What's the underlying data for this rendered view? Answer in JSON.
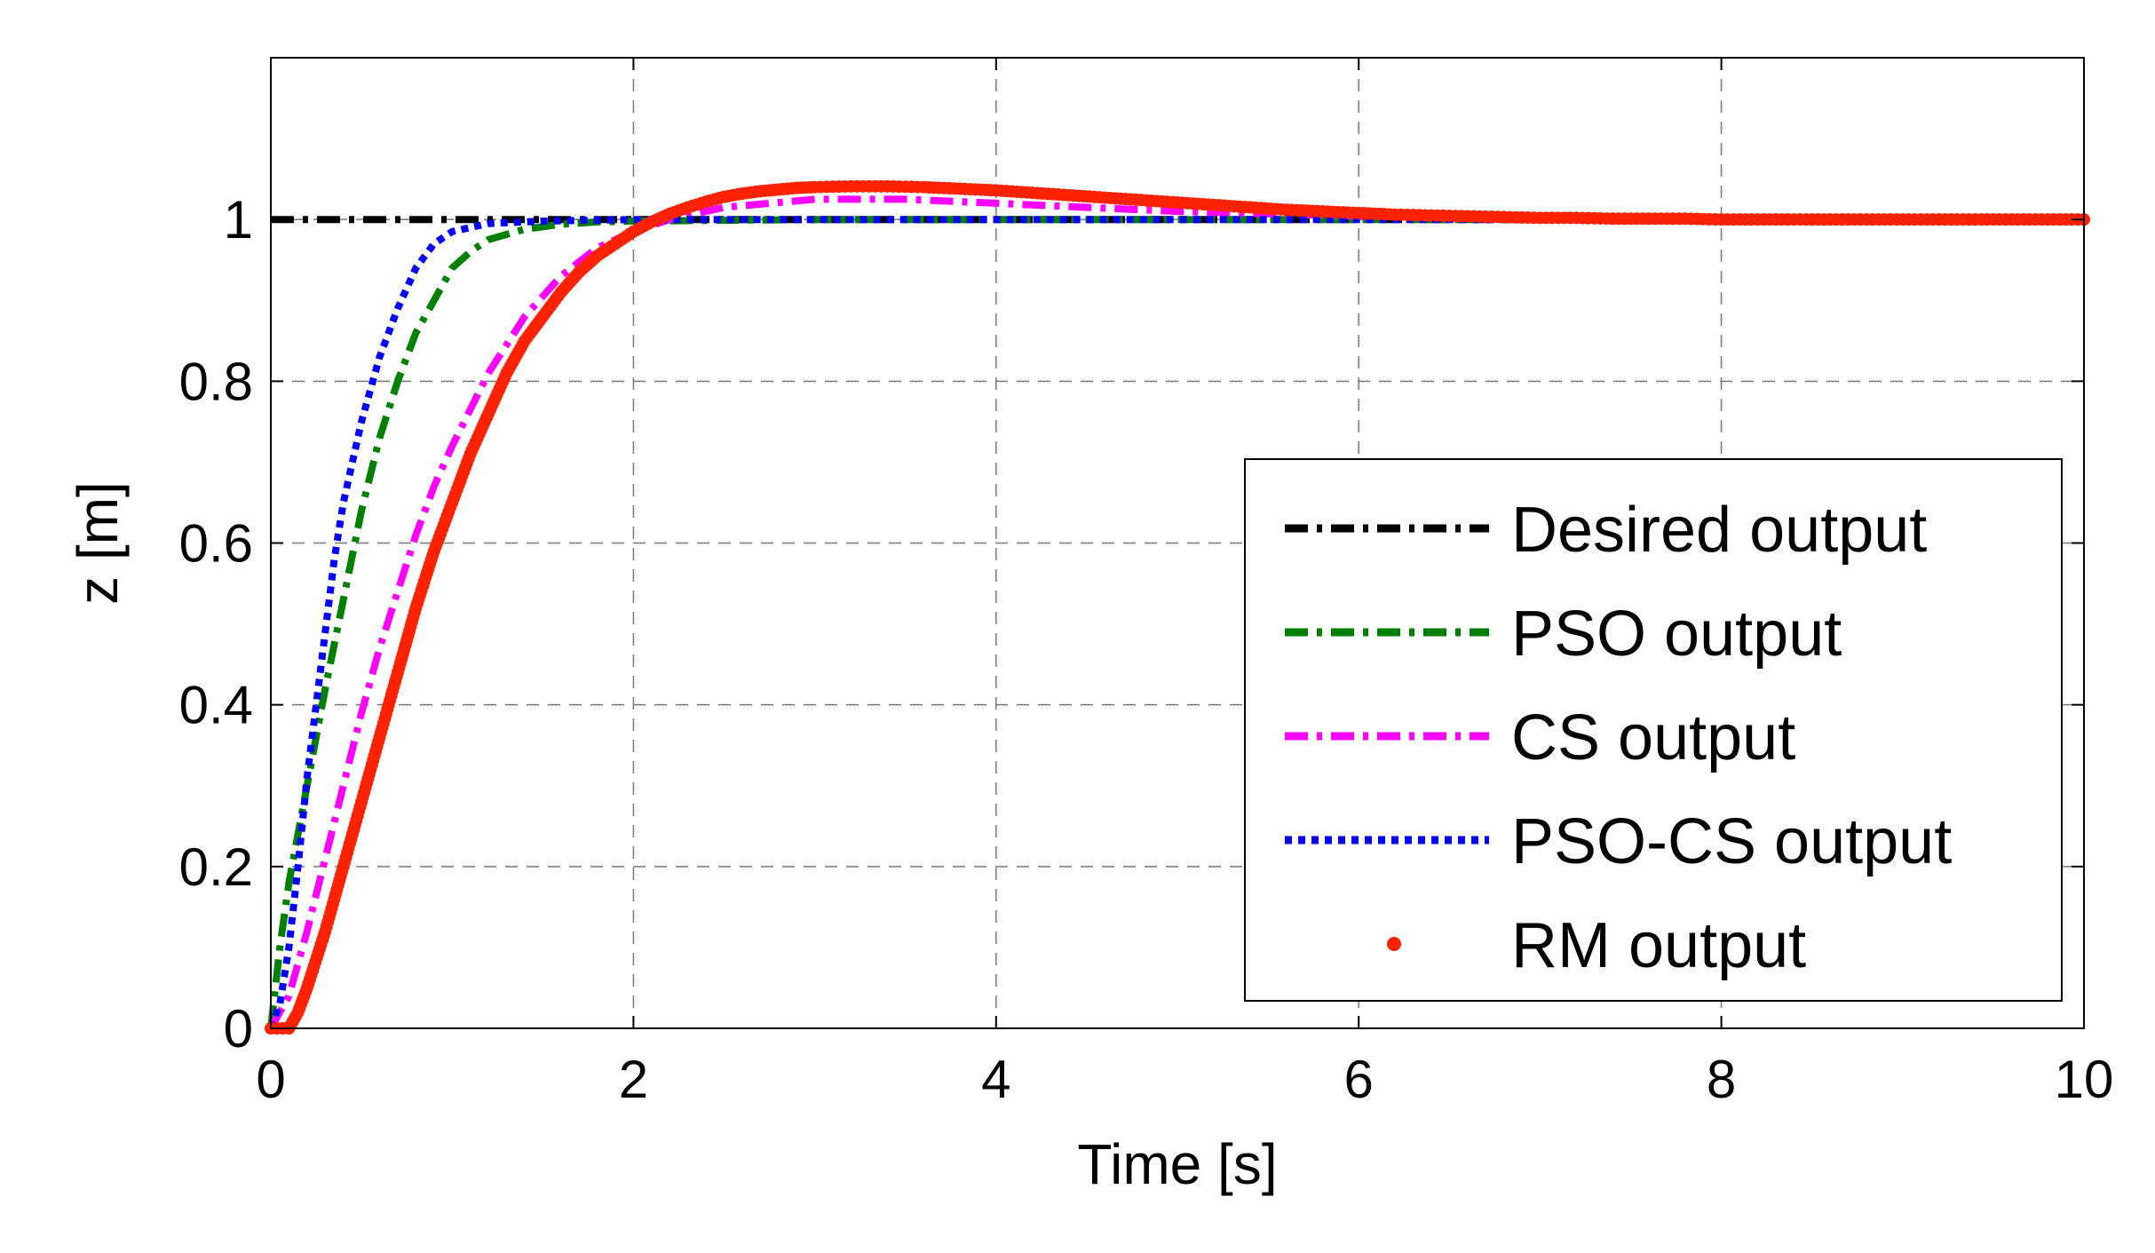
{
  "chart_data": {
    "type": "line",
    "title": "",
    "xlabel": "Time [s]",
    "ylabel": "z [m]",
    "xlim": [
      0,
      10
    ],
    "ylim": [
      0,
      1.2
    ],
    "xticks": [
      "0",
      "2",
      "4",
      "6",
      "8",
      "10"
    ],
    "yticks": [
      "0",
      "0.2",
      "0.4",
      "0.6",
      "0.8",
      "1"
    ],
    "grid": true,
    "legend_position": "lower-right",
    "series": [
      {
        "name": "Desired output",
        "color": "#000000",
        "style": "dash-dot",
        "x": [
          0,
          0.2,
          2,
          4,
          6,
          8,
          10
        ],
        "y": [
          1,
          1,
          1,
          1,
          1,
          1,
          1
        ]
      },
      {
        "name": "PSO output",
        "color": "#008000",
        "style": "dash-dot",
        "x": [
          0,
          0.05,
          0.1,
          0.2,
          0.3,
          0.4,
          0.5,
          0.6,
          0.7,
          0.8,
          0.9,
          1.0,
          1.1,
          1.2,
          1.4,
          1.6,
          1.8,
          2.0,
          2.5,
          3.0,
          4.0,
          6.0,
          8.0,
          10.0
        ],
        "y": [
          0,
          0.1,
          0.18,
          0.3,
          0.42,
          0.53,
          0.64,
          0.73,
          0.8,
          0.86,
          0.9,
          0.94,
          0.96,
          0.975,
          0.988,
          0.994,
          0.997,
          0.998,
          0.999,
          1.0,
          1.0,
          1.0,
          1.0,
          1.0
        ]
      },
      {
        "name": "CS output",
        "color": "#ff00ff",
        "style": "dash-dot",
        "x": [
          0,
          0.1,
          0.2,
          0.3,
          0.4,
          0.5,
          0.6,
          0.7,
          0.8,
          0.9,
          1.0,
          1.2,
          1.4,
          1.6,
          1.8,
          2.0,
          2.2,
          2.5,
          3.0,
          3.5,
          4.0,
          5.0,
          6.0,
          7.0,
          8.0,
          10.0
        ],
        "y": [
          0,
          0.04,
          0.12,
          0.21,
          0.3,
          0.39,
          0.47,
          0.54,
          0.61,
          0.67,
          0.72,
          0.81,
          0.88,
          0.93,
          0.965,
          0.985,
          1.0,
          1.015,
          1.025,
          1.025,
          1.02,
          1.01,
          1.004,
          1.002,
          1.0,
          1.0
        ]
      },
      {
        "name": "PSO-CS output",
        "color": "#0000ff",
        "style": "dotted",
        "x": [
          0,
          0.05,
          0.1,
          0.15,
          0.2,
          0.25,
          0.3,
          0.35,
          0.4,
          0.45,
          0.5,
          0.6,
          0.7,
          0.8,
          0.9,
          1.0,
          1.2,
          1.5,
          2.0,
          3.0,
          5.0,
          7.0,
          10.0
        ],
        "y": [
          0,
          0.03,
          0.1,
          0.2,
          0.31,
          0.4,
          0.49,
          0.58,
          0.65,
          0.7,
          0.75,
          0.83,
          0.89,
          0.94,
          0.97,
          0.985,
          0.995,
          0.998,
          1.0,
          1.0,
          1.0,
          1.0,
          1.0
        ]
      },
      {
        "name": "RM output",
        "color": "#ff2200",
        "style": "dots",
        "x": [
          0,
          0.1,
          0.15,
          0.2,
          0.3,
          0.4,
          0.5,
          0.6,
          0.7,
          0.8,
          0.9,
          1.0,
          1.1,
          1.2,
          1.3,
          1.4,
          1.5,
          1.6,
          1.7,
          1.8,
          1.9,
          2.0,
          2.1,
          2.2,
          2.3,
          2.4,
          2.5,
          2.6,
          2.7,
          2.8,
          2.9,
          3.0,
          3.2,
          3.4,
          3.6,
          3.8,
          4.0,
          4.2,
          4.4,
          4.6,
          4.8,
          5.0,
          5.2,
          5.4,
          5.6,
          5.8,
          6.0,
          6.2,
          6.4,
          6.6,
          6.8,
          7.0,
          7.2,
          7.4,
          7.6,
          7.8,
          8.0,
          8.2,
          8.4,
          8.6,
          8.8,
          9.0,
          9.2,
          9.4,
          9.6,
          9.8,
          10.0
        ],
        "y": [
          0,
          0.0,
          0.02,
          0.05,
          0.12,
          0.2,
          0.28,
          0.36,
          0.44,
          0.52,
          0.59,
          0.65,
          0.71,
          0.76,
          0.81,
          0.85,
          0.88,
          0.91,
          0.935,
          0.955,
          0.97,
          0.985,
          0.997,
          1.007,
          1.015,
          1.022,
          1.028,
          1.032,
          1.035,
          1.037,
          1.039,
          1.04,
          1.041,
          1.041,
          1.04,
          1.038,
          1.036,
          1.033,
          1.03,
          1.027,
          1.024,
          1.021,
          1.018,
          1.015,
          1.012,
          1.01,
          1.008,
          1.006,
          1.005,
          1.004,
          1.003,
          1.002,
          1.002,
          1.001,
          1.001,
          1.001,
          1.0,
          1.0,
          1.0,
          1.0,
          1.0,
          1.0,
          1.0,
          1.0,
          1.0,
          1.0,
          1.0
        ]
      }
    ]
  }
}
